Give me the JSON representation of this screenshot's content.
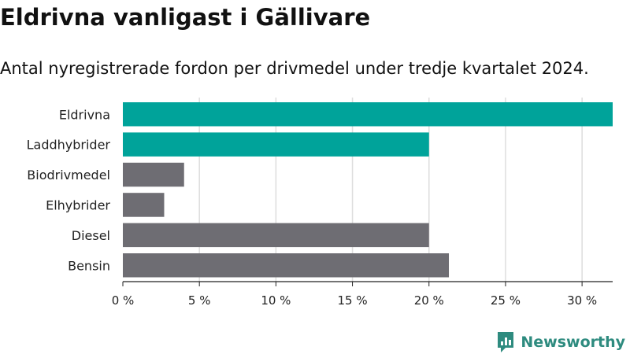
{
  "title": "Eldrivna vanligast i Gällivare",
  "subtitle": "Antal nyregistrerade fordon per drivmedel under tredje kvartalet 2024.",
  "brand": {
    "name": "Newsworthy",
    "icon": "newsworthy-logo-icon"
  },
  "colors": {
    "highlight": "#00a39a",
    "base": "#6e6d73",
    "grid": "#dddddd",
    "axis": "#222222",
    "brand": "#2e8b7f"
  },
  "chart_data": {
    "type": "bar",
    "orientation": "horizontal",
    "title": "Eldrivna vanligast i Gällivare",
    "subtitle": "Antal nyregistrerade fordon per drivmedel under tredje kvartalet 2024.",
    "xlabel": "",
    "ylabel": "",
    "categories": [
      "Eldrivna",
      "Laddhybrider",
      "Biodrivmedel",
      "Elhybrider",
      "Diesel",
      "Bensin"
    ],
    "values": [
      32,
      20,
      4,
      2.7,
      20,
      21.3
    ],
    "highlighted": [
      true,
      true,
      false,
      false,
      false,
      false
    ],
    "xlim": [
      0,
      32
    ],
    "xticks": [
      0,
      5,
      10,
      15,
      20,
      25,
      30
    ],
    "xtick_labels": [
      "0 %",
      "5 %",
      "10 %",
      "15 %",
      "20 %",
      "25 %",
      "30 %"
    ],
    "grid": true,
    "legend": "none"
  }
}
